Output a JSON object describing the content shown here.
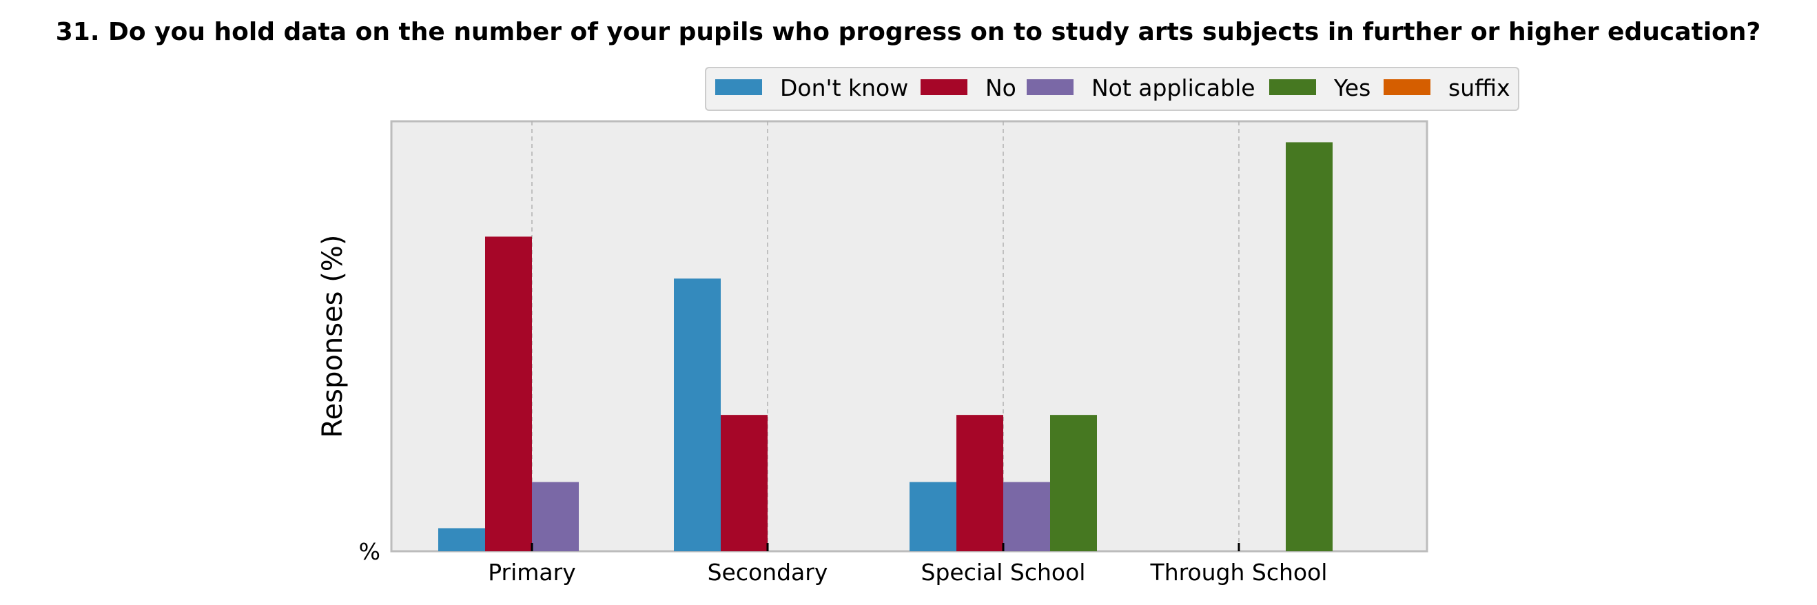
{
  "chart_data": {
    "type": "bar",
    "title": "31. Do you hold data on the number of your pupils who progress on to study arts subjects in further or higher education?",
    "xlabel": "",
    "ylabel": "Responses (%)",
    "y_tick_labels": [
      "%"
    ],
    "categories": [
      "Primary",
      "Secondary",
      "Special School",
      "Through School"
    ],
    "series": [
      {
        "name": "Don't know",
        "color": "#348ABD",
        "values": [
          5.5,
          65,
          16.5,
          0
        ]
      },
      {
        "name": "No",
        "color": "#A60628",
        "values": [
          75,
          32.5,
          32.5,
          0
        ]
      },
      {
        "name": "Not applicable",
        "color": "#7A68A6",
        "values": [
          16.5,
          0,
          16.5,
          0
        ]
      },
      {
        "name": "Yes",
        "color": "#467821",
        "values": [
          0,
          0,
          32.5,
          97.5
        ]
      },
      {
        "name": "suffix",
        "color": "#D55E00",
        "values": [
          0,
          0,
          0,
          0
        ]
      }
    ],
    "ylim": [
      0,
      102.5
    ],
    "grid": true,
    "legend_position": "top-center",
    "background": "#EDEDED"
  }
}
